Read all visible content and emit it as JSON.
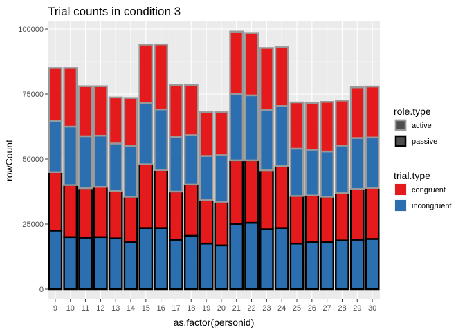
{
  "chart_data": {
    "type": "bar",
    "title": "Trial counts in condition 3",
    "xlabel": "as.factor(personid)",
    "ylabel": "rowCount",
    "ylim": [
      0,
      100000
    ],
    "yticks": [
      0,
      25000,
      50000,
      75000,
      100000
    ],
    "ytick_labels": [
      "0",
      "25000",
      "50000",
      "75000",
      "100000"
    ],
    "grid": true,
    "categories": [
      "9",
      "10",
      "11",
      "12",
      "13",
      "14",
      "15",
      "16",
      "17",
      "18",
      "19",
      "20",
      "21",
      "22",
      "23",
      "24",
      "25",
      "26",
      "27",
      "28",
      "29",
      "30"
    ],
    "stack_order": [
      "passive-incongruent",
      "passive-congruent",
      "active-incongruent",
      "active-congruent"
    ],
    "series": [
      {
        "name": "passive-incongruent",
        "role": "passive",
        "trial": "incongruent",
        "values": [
          22500,
          20000,
          19800,
          20000,
          19500,
          18000,
          23500,
          23500,
          19000,
          20500,
          17500,
          16800,
          25000,
          25500,
          23000,
          23500,
          17500,
          18000,
          18000,
          18700,
          19000,
          19300
        ]
      },
      {
        "name": "passive-congruent",
        "role": "passive",
        "trial": "congruent",
        "values": [
          22500,
          20000,
          19000,
          19300,
          18300,
          17500,
          24500,
          22300,
          18500,
          19700,
          16800,
          16800,
          24500,
          24000,
          22700,
          23900,
          18300,
          18000,
          17500,
          18300,
          19500,
          19600
        ]
      },
      {
        "name": "active-incongruent",
        "role": "active",
        "trial": "incongruent",
        "values": [
          19700,
          22500,
          20000,
          19700,
          18200,
          19500,
          23500,
          23300,
          21000,
          19000,
          16900,
          17900,
          25500,
          25000,
          23200,
          23000,
          18200,
          17600,
          17400,
          18200,
          19600,
          19400
        ]
      },
      {
        "name": "active-congruent",
        "role": "active",
        "trial": "congruent",
        "values": [
          20300,
          22500,
          19200,
          19000,
          17700,
          18500,
          22500,
          25000,
          20000,
          19200,
          16800,
          16500,
          24000,
          24000,
          23800,
          22600,
          17800,
          18000,
          19100,
          17300,
          19500,
          19600
        ]
      }
    ],
    "legend_position": "right",
    "legends": [
      {
        "title": "role.type",
        "items": [
          {
            "label": "active",
            "border": "#999999"
          },
          {
            "label": "passive",
            "border": "#000000"
          }
        ]
      },
      {
        "title": "trial.type",
        "items": [
          {
            "label": "congruent",
            "fill": "#e41a1c"
          },
          {
            "label": "incongruent",
            "fill": "#2c6fb0"
          }
        ]
      }
    ]
  },
  "colors": {
    "congruent": "#e41a1c",
    "incongruent": "#2c6fb0",
    "active_border": "#999999",
    "passive_border": "#000000",
    "panel_bg": "#ebebeb",
    "grid": "#ffffff",
    "legend_key_fill": "#4d4d4d"
  }
}
